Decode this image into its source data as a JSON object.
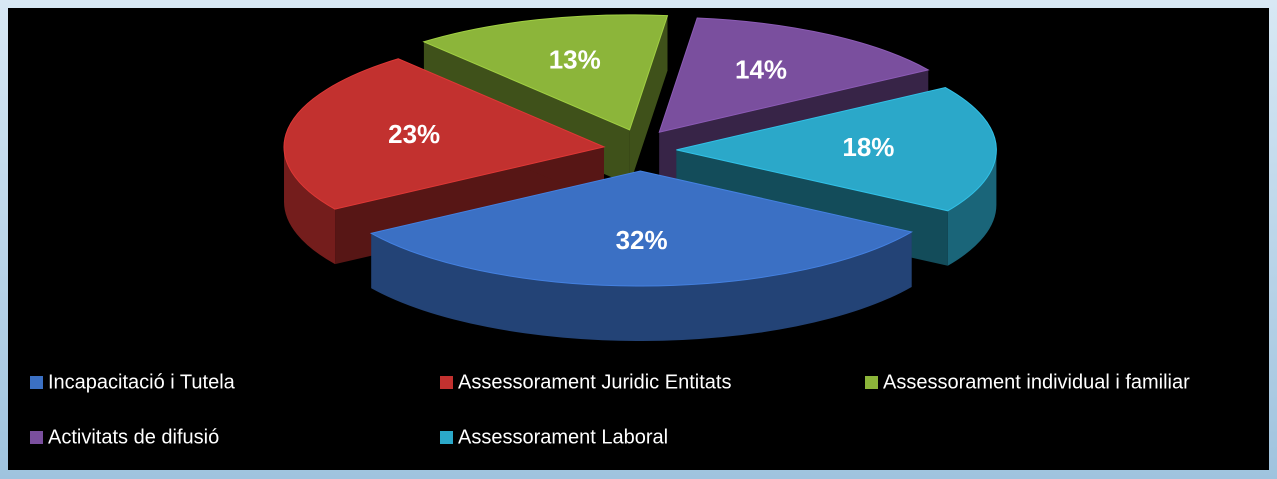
{
  "chart_data": {
    "type": "pie",
    "categories": [
      "Incapacitació i Tutela",
      "Assessorament Juridic Entitats",
      "Assessorament individual i familiar",
      "Activitats de difusió",
      "Assessorament Laboral"
    ],
    "values": [
      32,
      23,
      13,
      14,
      18
    ],
    "value_labels": [
      "32%",
      "23%",
      "13%",
      "14%",
      "18%"
    ],
    "colors": [
      "#3b70c4",
      "#c2312f",
      "#8cb53a",
      "#7a4f9e",
      "#2ba8c9"
    ],
    "legend": "bottom"
  }
}
